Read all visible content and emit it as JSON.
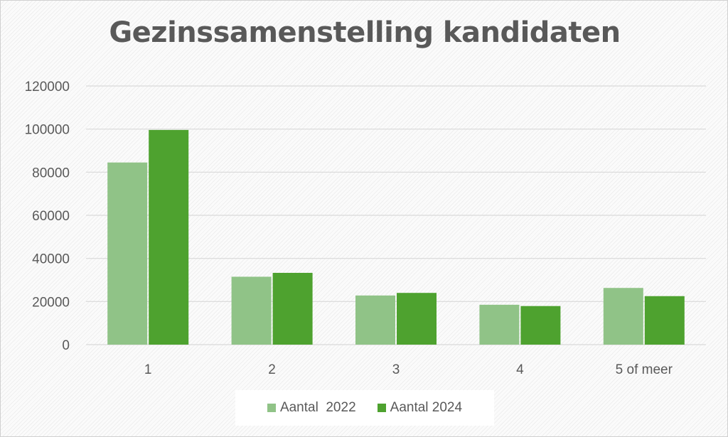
{
  "colors": {
    "series_2022": "#90c387",
    "series_2024": "#4ea22f",
    "gridline": "#d9d9d9",
    "text": "#595959"
  },
  "chart_data": {
    "type": "bar",
    "title": "Gezinssamenstelling kandidaten",
    "xlabel": "",
    "ylabel": "",
    "categories": [
      "1",
      "2",
      "3",
      "4",
      "5 of meer"
    ],
    "series": [
      {
        "name": "Aantal  2022",
        "values": [
          84500,
          31500,
          22800,
          18500,
          26300
        ]
      },
      {
        "name": "Aantal 2024",
        "values": [
          99600,
          33300,
          24000,
          17900,
          22500
        ]
      }
    ],
    "ylim": [
      0,
      120000
    ],
    "yticks": [
      "0",
      "20000",
      "40000",
      "60000",
      "80000",
      "100000",
      "120000"
    ],
    "grid": true,
    "legend_position": "bottom"
  }
}
